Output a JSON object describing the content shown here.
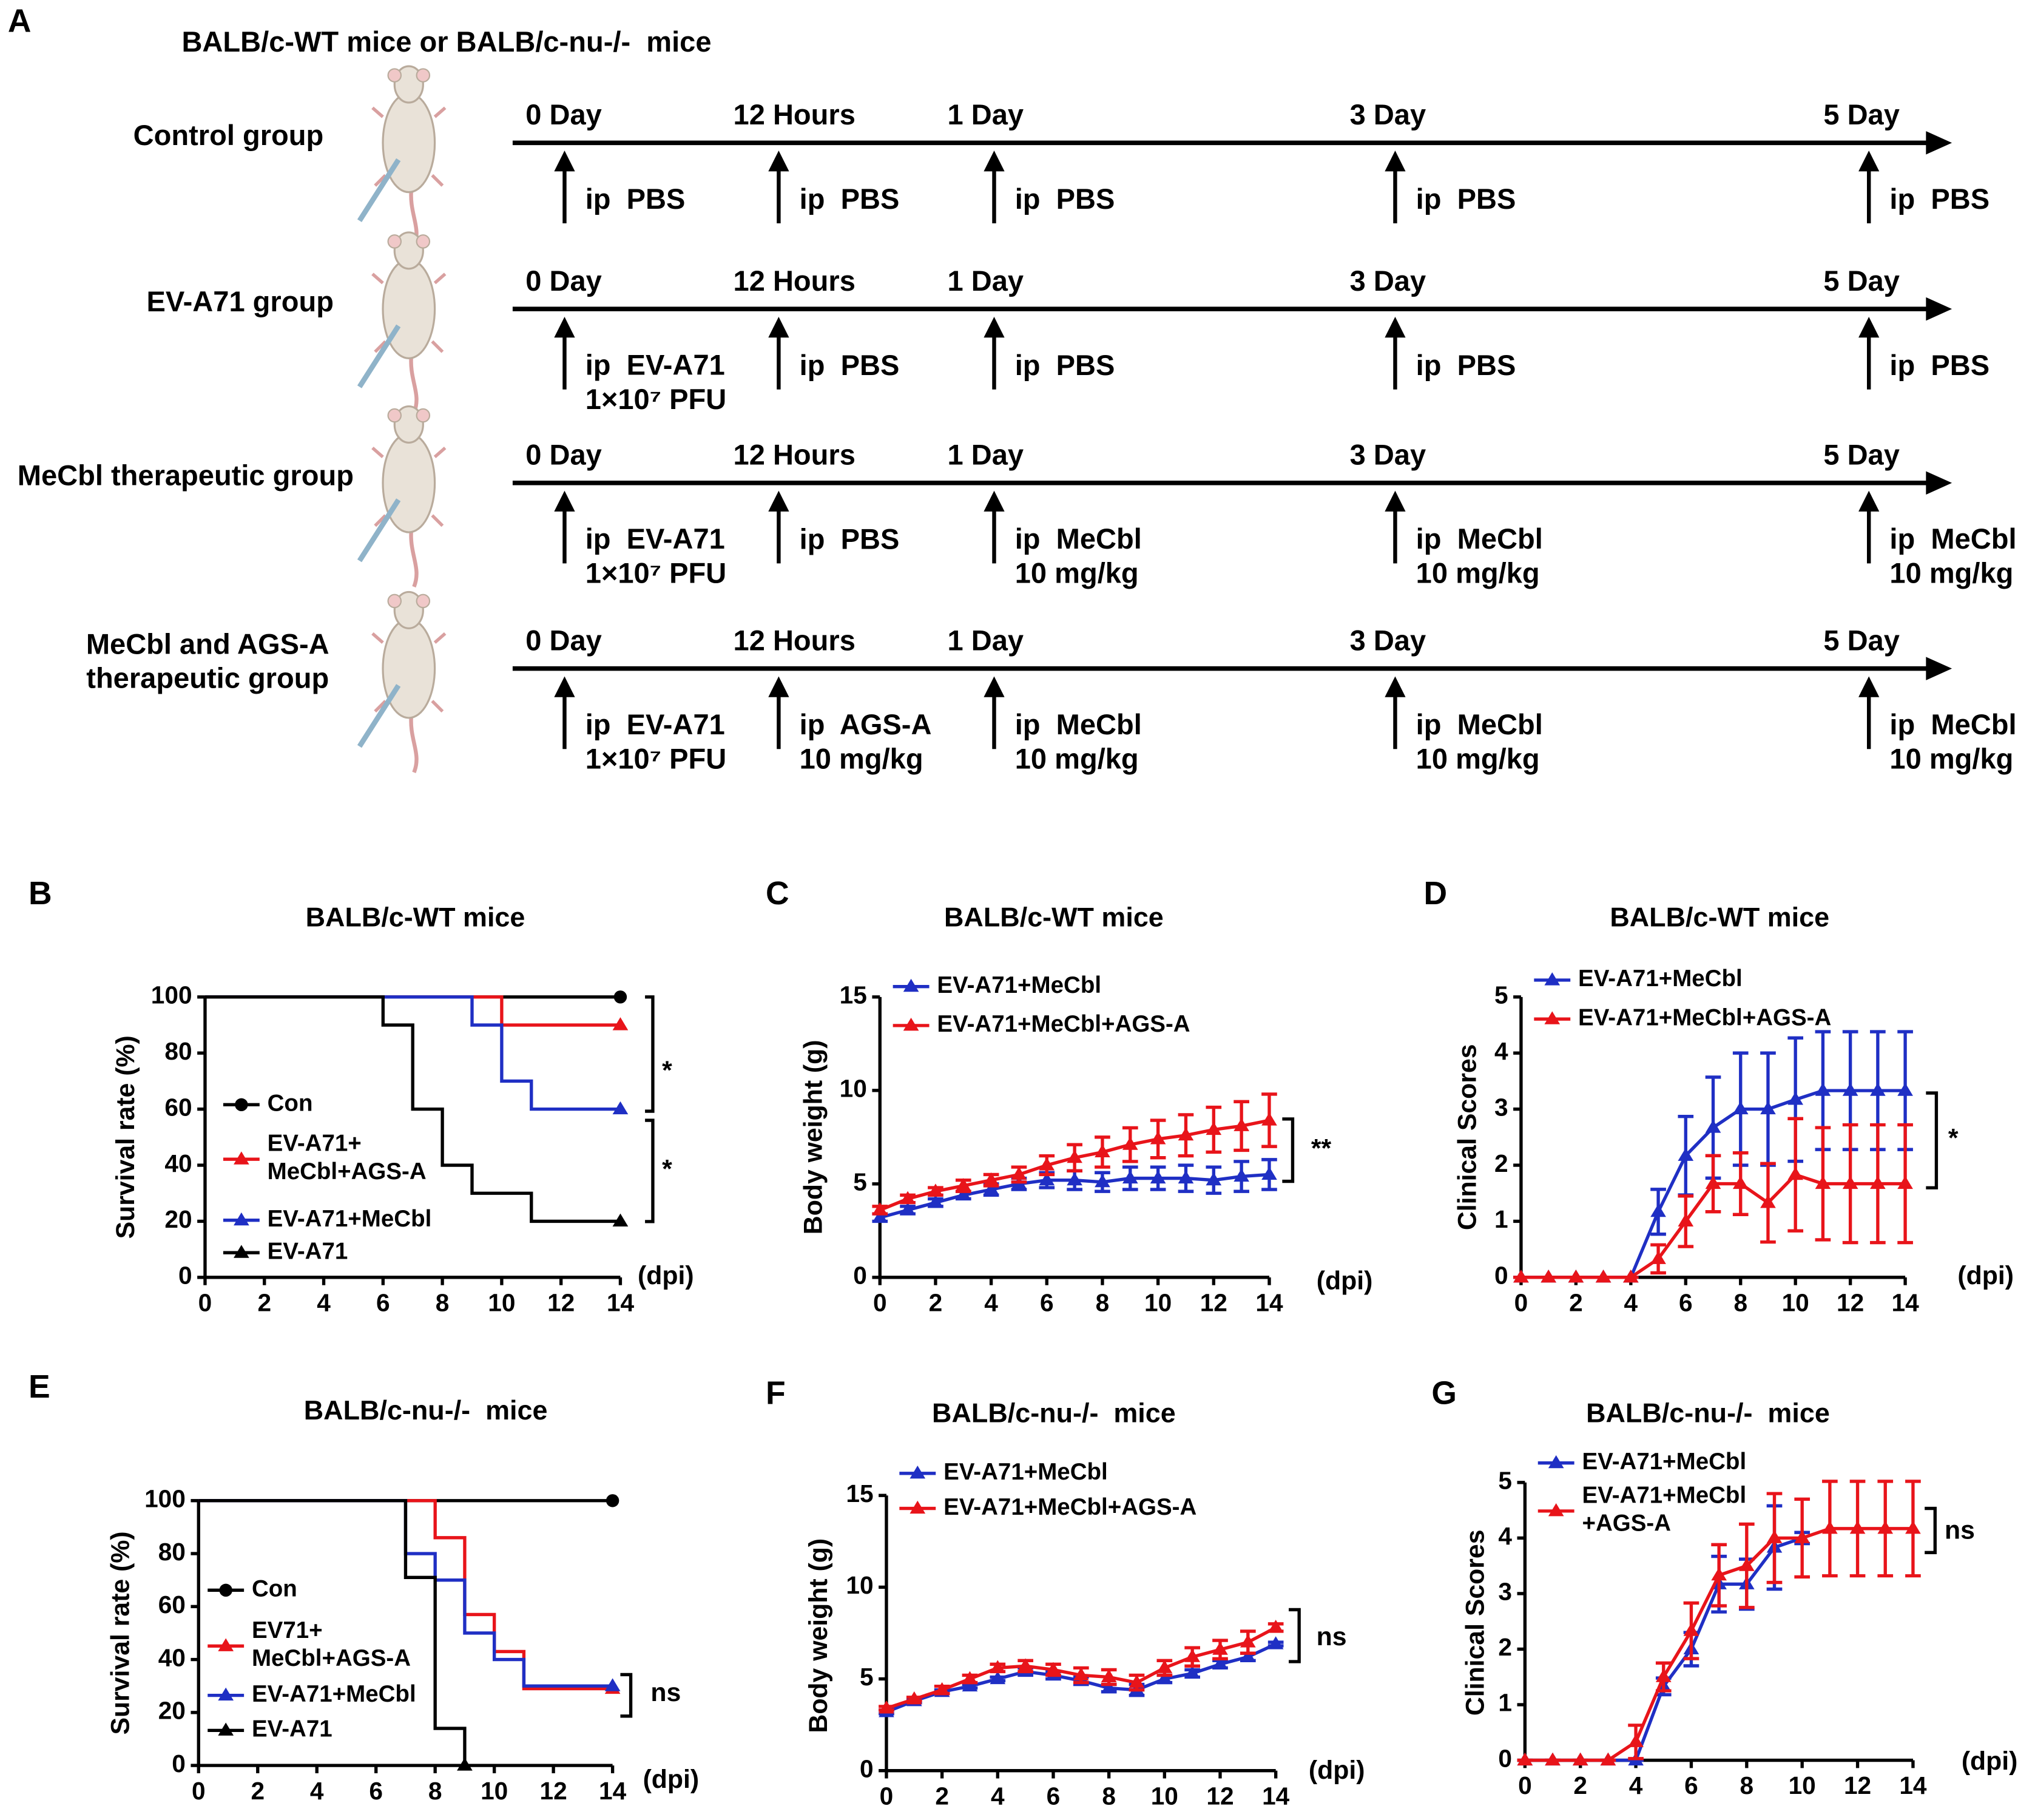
{
  "panel_a": {
    "letter": "A",
    "header": "BALB/c-WT mice or BALB/c-nu-/-  mice",
    "groups": [
      {
        "label": "Control group",
        "times": [
          "0 Day",
          "12 Hours",
          "1 Day",
          "3 Day",
          "5 Day"
        ],
        "treatments": [
          "ip  PBS",
          "ip  PBS",
          "ip  PBS",
          "ip  PBS",
          "ip  PBS"
        ]
      },
      {
        "label": "EV-A71 group",
        "times": [
          "0 Day",
          "12 Hours",
          "1 Day",
          "3 Day",
          "5 Day"
        ],
        "treatments": [
          "ip  EV-A71\n1×10⁷ PFU",
          "ip  PBS",
          "ip  PBS",
          "ip  PBS",
          "ip  PBS"
        ]
      },
      {
        "label": "MeCbl therapeutic group",
        "times": [
          "0 Day",
          "12 Hours",
          "1 Day",
          "3 Day",
          "5 Day"
        ],
        "treatments": [
          "ip  EV-A71\n1×10⁷ PFU",
          "ip  PBS",
          "ip  MeCbl\n10 mg/kg",
          "ip  MeCbl\n10 mg/kg",
          "ip  MeCbl\n10 mg/kg"
        ]
      },
      {
        "label": "MeCbl and AGS-A\ntherapeutic group",
        "times": [
          "0 Day",
          "12 Hours",
          "1 Day",
          "3 Day",
          "5 Day"
        ],
        "treatments": [
          "ip  EV-A71\n1×10⁷ PFU",
          "ip  AGS-A\n10 mg/kg",
          "ip  MeCbl\n10 mg/kg",
          "ip  MeCbl\n10 mg/kg",
          "ip  MeCbl\n10 mg/kg"
        ]
      }
    ]
  },
  "chart_data": [
    {
      "type": "step",
      "panel": "B",
      "title": "BALB/c-WT mice",
      "xlabel": "(dpi)",
      "ylabel": "Survival rate (%)",
      "xlim": [
        0,
        14
      ],
      "xticks": [
        0,
        2,
        4,
        6,
        8,
        10,
        12,
        14
      ],
      "ylim": [
        0,
        100
      ],
      "yticks": [
        0,
        20,
        40,
        60,
        80,
        100
      ],
      "series": [
        {
          "name": "Con",
          "color": "#000000",
          "marker": "circle",
          "x": [
            0,
            14
          ],
          "values": [
            100,
            100
          ]
        },
        {
          "name": "EV-A71+\nMeCbl+AGS-A",
          "color": "#e8141a",
          "marker": "triangle",
          "x": [
            0,
            10,
            14
          ],
          "values": [
            100,
            90,
            90
          ]
        },
        {
          "name": "EV-A71+MeCbl",
          "color": "#1f2fc4",
          "marker": "triangle",
          "x": [
            0,
            9,
            10,
            11,
            14
          ],
          "values": [
            100,
            90,
            70,
            60,
            60
          ]
        },
        {
          "name": "EV-A71",
          "color": "#000000",
          "marker": "triangle",
          "x": [
            0,
            6,
            7,
            8,
            9,
            11,
            14
          ],
          "values": [
            100,
            90,
            60,
            40,
            30,
            20,
            20
          ]
        }
      ],
      "annotations": [
        "*",
        "*"
      ]
    },
    {
      "type": "line",
      "panel": "C",
      "title": "BALB/c-WT mice",
      "xlabel": "(dpi)",
      "ylabel": "Body weight (g)",
      "xlim": [
        0,
        14
      ],
      "xticks": [
        0,
        2,
        4,
        6,
        8,
        10,
        12,
        14
      ],
      "ylim": [
        0,
        15
      ],
      "yticks": [
        0,
        5,
        10,
        15
      ],
      "x": [
        0,
        1,
        2,
        3,
        4,
        5,
        6,
        7,
        8,
        9,
        10,
        11,
        12,
        13,
        14
      ],
      "series": [
        {
          "name": "EV-A71+MeCbl",
          "color": "#1f2fc4",
          "marker": "triangle",
          "values": [
            3.2,
            3.6,
            4.0,
            4.4,
            4.7,
            5.0,
            5.2,
            5.2,
            5.1,
            5.3,
            5.3,
            5.3,
            5.2,
            5.4,
            5.5
          ],
          "errors": [
            0.2,
            0.2,
            0.2,
            0.2,
            0.3,
            0.3,
            0.4,
            0.5,
            0.5,
            0.6,
            0.6,
            0.7,
            0.7,
            0.8,
            0.8
          ]
        },
        {
          "name": "EV-A71+MeCbl+AGS-A",
          "color": "#e8141a",
          "marker": "triangle",
          "values": [
            3.6,
            4.2,
            4.6,
            4.9,
            5.2,
            5.5,
            6.0,
            6.4,
            6.7,
            7.1,
            7.4,
            7.6,
            7.9,
            8.1,
            8.4
          ],
          "errors": [
            0.2,
            0.2,
            0.2,
            0.3,
            0.3,
            0.4,
            0.5,
            0.7,
            0.8,
            0.9,
            1.0,
            1.1,
            1.2,
            1.3,
            1.4
          ]
        }
      ],
      "annotations": [
        "**"
      ]
    },
    {
      "type": "line",
      "panel": "D",
      "title": "BALB/c-WT mice",
      "xlabel": "(dpi)",
      "ylabel": "Clinical Scores",
      "xlim": [
        0,
        14
      ],
      "xticks": [
        0,
        2,
        4,
        6,
        8,
        10,
        12,
        14
      ],
      "ylim": [
        0,
        5
      ],
      "yticks": [
        0,
        1,
        2,
        3,
        4,
        5
      ],
      "x": [
        0,
        1,
        2,
        3,
        4,
        5,
        6,
        7,
        8,
        9,
        10,
        11,
        12,
        13,
        14
      ],
      "series": [
        {
          "name": "EV-A71+MeCbl",
          "color": "#1f2fc4",
          "marker": "triangle",
          "values": [
            0,
            0,
            0,
            0,
            0,
            1.17,
            2.17,
            2.67,
            3.0,
            3.0,
            3.17,
            3.33,
            3.33,
            3.33,
            3.33
          ],
          "errors": [
            0,
            0,
            0,
            0,
            0,
            0.4,
            0.7,
            0.9,
            1.0,
            1.0,
            1.1,
            1.05,
            1.05,
            1.05,
            1.05
          ]
        },
        {
          "name": "EV-A71+MeCbl+AGS-A",
          "color": "#e8141a",
          "marker": "triangle",
          "values": [
            0,
            0,
            0,
            0,
            0,
            0.33,
            1.0,
            1.67,
            1.67,
            1.33,
            1.83,
            1.67,
            1.67,
            1.67,
            1.67
          ],
          "errors": [
            0,
            0,
            0,
            0,
            0,
            0.25,
            0.45,
            0.5,
            0.55,
            0.7,
            1.0,
            1.0,
            1.05,
            1.05,
            1.05
          ]
        }
      ],
      "annotations": [
        "*"
      ]
    },
    {
      "type": "step",
      "panel": "E",
      "title": "BALB/c-nu-/-  mice",
      "xlabel": "(dpi)",
      "ylabel": "Survival rate (%)",
      "xlim": [
        0,
        14
      ],
      "xticks": [
        0,
        2,
        4,
        6,
        8,
        10,
        12,
        14
      ],
      "ylim": [
        0,
        100
      ],
      "yticks": [
        0,
        20,
        40,
        60,
        80,
        100
      ],
      "series": [
        {
          "name": "Con",
          "color": "#000000",
          "marker": "circle",
          "x": [
            0,
            14
          ],
          "values": [
            100,
            100
          ]
        },
        {
          "name": "EV71+\nMeCbl+AGS-A",
          "color": "#e8141a",
          "marker": "triangle",
          "x": [
            0,
            8,
            9,
            10,
            11,
            14
          ],
          "values": [
            100,
            86,
            57,
            43,
            29,
            29
          ]
        },
        {
          "name": "EV-A71+MeCbl",
          "color": "#1f2fc4",
          "marker": "triangle",
          "x": [
            0,
            7,
            8,
            9,
            10,
            11,
            14
          ],
          "values": [
            100,
            80,
            70,
            50,
            40,
            30,
            30
          ]
        },
        {
          "name": "EV-A71",
          "color": "#000000",
          "marker": "triangle",
          "x": [
            0,
            7,
            8,
            9
          ],
          "values": [
            100,
            71,
            14,
            0
          ]
        }
      ],
      "annotations": [
        "ns"
      ]
    },
    {
      "type": "line",
      "panel": "F",
      "title": "BALB/c-nu-/-  mice",
      "xlabel": "(dpi)",
      "ylabel": "Body weight (g)",
      "xlim": [
        0,
        14
      ],
      "xticks": [
        0,
        2,
        4,
        6,
        8,
        10,
        12,
        14
      ],
      "ylim": [
        0,
        15
      ],
      "yticks": [
        0,
        5,
        10,
        15
      ],
      "x": [
        0,
        1,
        2,
        3,
        4,
        5,
        6,
        7,
        8,
        9,
        10,
        11,
        12,
        13,
        14
      ],
      "series": [
        {
          "name": "EV-A71+MeCbl",
          "color": "#1f2fc4",
          "marker": "triangle",
          "values": [
            3.2,
            3.8,
            4.3,
            4.6,
            5.0,
            5.4,
            5.2,
            4.9,
            4.5,
            4.4,
            5.0,
            5.3,
            5.8,
            6.2,
            6.9
          ],
          "errors": [
            0.1,
            0.1,
            0.1,
            0.1,
            0.1,
            0.2,
            0.2,
            0.2,
            0.2,
            0.3,
            0.2,
            0.2,
            0.2,
            0.2,
            0.1
          ]
        },
        {
          "name": "EV-A71+MeCbl+AGS-A",
          "color": "#e8141a",
          "marker": "triangle",
          "values": [
            3.4,
            3.9,
            4.4,
            5.0,
            5.6,
            5.7,
            5.5,
            5.2,
            5.1,
            4.8,
            5.6,
            6.2,
            6.6,
            7.0,
            7.8
          ],
          "errors": [
            0.1,
            0.1,
            0.2,
            0.2,
            0.2,
            0.3,
            0.3,
            0.4,
            0.4,
            0.4,
            0.4,
            0.5,
            0.5,
            0.6,
            0.2
          ]
        }
      ],
      "annotations": [
        "ns"
      ]
    },
    {
      "type": "line",
      "panel": "G",
      "title": "BALB/c-nu-/-  mice",
      "xlabel": "(dpi)",
      "ylabel": "Clinical Scores",
      "xlim": [
        0,
        14
      ],
      "xticks": [
        0,
        2,
        4,
        6,
        8,
        10,
        12,
        14
      ],
      "ylim": [
        0,
        5
      ],
      "yticks": [
        0,
        1,
        2,
        3,
        4,
        5
      ],
      "x": [
        0,
        1,
        2,
        3,
        4,
        5,
        6,
        7,
        8,
        9,
        10,
        11,
        12,
        13,
        14
      ],
      "series": [
        {
          "name": "EV-A71+MeCbl",
          "color": "#1f2fc4",
          "marker": "triangle",
          "values": [
            0,
            0,
            0,
            0,
            0,
            1.33,
            2.0,
            3.17,
            3.17,
            3.83,
            4.0,
            null,
            null,
            null,
            null
          ],
          "errors": [
            0,
            0,
            0,
            0,
            0,
            0.15,
            0.3,
            0.5,
            0.45,
            0.75,
            0.1,
            null,
            null,
            null,
            null
          ]
        },
        {
          "name": "EV-A71+MeCbl\n+AGS-A",
          "color": "#e8141a",
          "marker": "triangle",
          "values": [
            0,
            0,
            0,
            0,
            0.33,
            1.5,
            2.33,
            3.33,
            3.5,
            4.0,
            4.0,
            4.17,
            4.17,
            4.17,
            4.17
          ],
          "errors": [
            0,
            0,
            0,
            0,
            0.3,
            0.25,
            0.5,
            0.55,
            0.75,
            0.8,
            0.7,
            0.85,
            0.85,
            0.85,
            0.85
          ]
        }
      ],
      "annotations": [
        "ns"
      ]
    }
  ]
}
